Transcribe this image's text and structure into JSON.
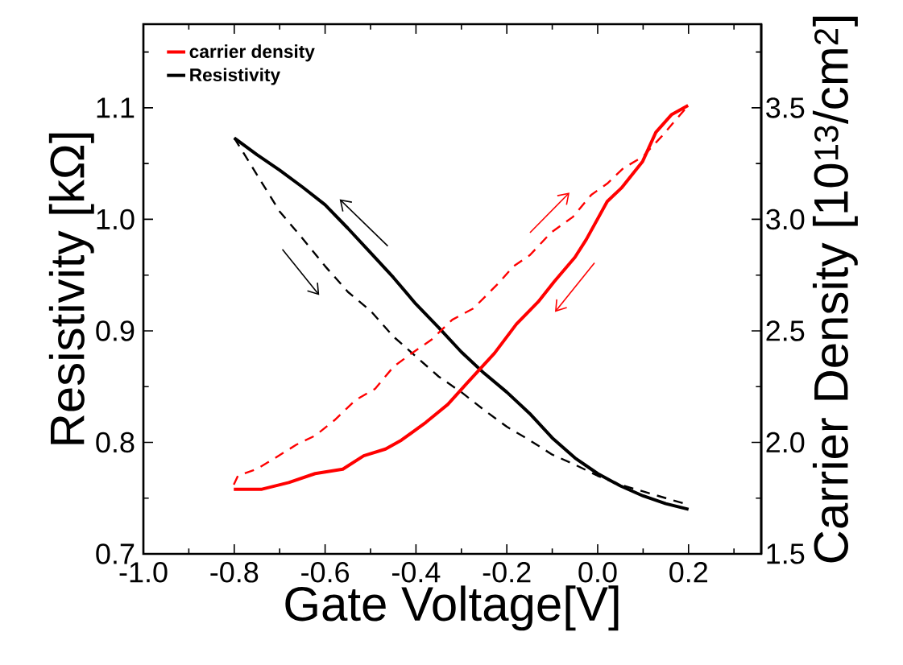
{
  "chart_data": {
    "type": "line",
    "xlabel": "Gate Voltage[V]",
    "ylabel": "Resistivity [kΩ]",
    "y2label": "Carrier Density [10$^{13}$/cm$^{2}$]",
    "xlim": [
      -1.0,
      0.36
    ],
    "ylim": [
      0.7,
      1.175
    ],
    "y2lim": [
      1.5,
      3.875
    ],
    "xticks": [
      {
        "value": -1.0,
        "label": "-1.0"
      },
      {
        "value": -0.9,
        "label": null
      },
      {
        "value": -0.8,
        "label": "-0.8"
      },
      {
        "value": -0.7,
        "label": null
      },
      {
        "value": -0.6,
        "label": "-0.6"
      },
      {
        "value": -0.5,
        "label": null
      },
      {
        "value": -0.4,
        "label": "-0.4"
      },
      {
        "value": -0.3,
        "label": null
      },
      {
        "value": -0.2,
        "label": "-0.2"
      },
      {
        "value": -0.1,
        "label": null
      },
      {
        "value": 0.0,
        "label": "0.0"
      },
      {
        "value": 0.1,
        "label": null
      },
      {
        "value": 0.2,
        "label": "0.2"
      },
      {
        "value": 0.3,
        "label": null
      }
    ],
    "yticks": [
      {
        "value": 0.7,
        "label": "0.7"
      },
      {
        "value": 0.75,
        "label": null
      },
      {
        "value": 0.8,
        "label": "0.8"
      },
      {
        "value": 0.85,
        "label": null
      },
      {
        "value": 0.9,
        "label": "0.9"
      },
      {
        "value": 0.95,
        "label": null
      },
      {
        "value": 1.0,
        "label": "1.0"
      },
      {
        "value": 1.05,
        "label": null
      },
      {
        "value": 1.1,
        "label": "1.1"
      },
      {
        "value": 1.15,
        "label": null
      }
    ],
    "y2ticks": [
      {
        "value": 1.5,
        "label": "1.5"
      },
      {
        "value": 1.75,
        "label": null
      },
      {
        "value": 2.0,
        "label": "2.0"
      },
      {
        "value": 2.25,
        "label": null
      },
      {
        "value": 2.5,
        "label": "2.5"
      },
      {
        "value": 2.75,
        "label": null
      },
      {
        "value": 3.0,
        "label": "3.0"
      },
      {
        "value": 3.25,
        "label": null
      },
      {
        "value": 3.5,
        "label": "3.5"
      },
      {
        "value": 3.75,
        "label": null
      }
    ],
    "legend": "top left",
    "series": [
      {
        "name": "carrier density",
        "color": "#ff0000",
        "axis": "y2",
        "line_style": "solid",
        "x": [
          -0.801,
          -0.739,
          -0.68,
          -0.622,
          -0.561,
          -0.515,
          -0.467,
          -0.432,
          -0.378,
          -0.33,
          -0.29,
          -0.227,
          -0.179,
          -0.131,
          -0.096,
          -0.05,
          -0.025,
          0.021,
          0.052,
          0.099,
          0.128,
          0.163,
          0.199
        ],
        "values": [
          1.79,
          1.79,
          1.82,
          1.86,
          1.88,
          1.94,
          1.97,
          2.01,
          2.09,
          2.17,
          2.26,
          2.4,
          2.53,
          2.63,
          2.72,
          2.83,
          2.91,
          3.08,
          3.14,
          3.26,
          3.39,
          3.47,
          3.51
        ]
      },
      {
        "color": "#ff0000",
        "axis": "y2",
        "line_style": "dashed",
        "x": [
          -0.801,
          -0.792,
          -0.751,
          -0.71,
          -0.663,
          -0.622,
          -0.579,
          -0.533,
          -0.49,
          -0.449,
          -0.409,
          -0.366,
          -0.32,
          -0.274,
          -0.22,
          -0.185,
          -0.149,
          -0.103,
          -0.055,
          -0.014,
          0.021,
          0.057,
          0.099,
          0.14,
          0.199
        ],
        "values": [
          1.81,
          1.85,
          1.88,
          1.93,
          1.99,
          2.03,
          2.1,
          2.19,
          2.24,
          2.34,
          2.4,
          2.46,
          2.55,
          2.6,
          2.71,
          2.79,
          2.84,
          2.94,
          3.01,
          3.11,
          3.16,
          3.23,
          3.28,
          3.37,
          3.51
        ]
      },
      {
        "name": "Resistivity",
        "color": "#000000",
        "line_style": "solid",
        "x": [
          -0.8,
          -0.75,
          -0.7,
          -0.65,
          -0.6,
          -0.55,
          -0.5,
          -0.45,
          -0.4,
          -0.35,
          -0.3,
          -0.25,
          -0.2,
          -0.15,
          -0.1,
          -0.05,
          0.0,
          0.05,
          0.1,
          0.15,
          0.2
        ],
        "values": [
          1.073,
          1.058,
          1.044,
          1.029,
          1.013,
          0.992,
          0.97,
          0.948,
          0.924,
          0.903,
          0.881,
          0.862,
          0.845,
          0.826,
          0.804,
          0.786,
          0.772,
          0.761,
          0.752,
          0.745,
          0.74
        ]
      },
      {
        "color": "#000000",
        "line_style": "dashed",
        "x": [
          -0.8,
          -0.75,
          -0.7,
          -0.65,
          -0.6,
          -0.55,
          -0.5,
          -0.45,
          -0.4,
          -0.35,
          -0.3,
          -0.25,
          -0.2,
          -0.15,
          -0.1,
          -0.05,
          0.0,
          0.05,
          0.1,
          0.15,
          0.2
        ],
        "values": [
          1.073,
          1.04,
          1.007,
          0.983,
          0.958,
          0.935,
          0.918,
          0.895,
          0.877,
          0.859,
          0.845,
          0.829,
          0.814,
          0.802,
          0.789,
          0.78,
          0.77,
          0.762,
          0.756,
          0.75,
          0.744
        ]
      }
    ]
  }
}
